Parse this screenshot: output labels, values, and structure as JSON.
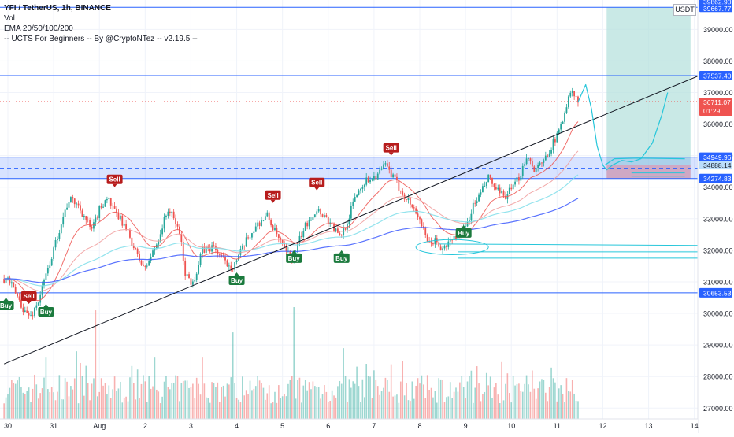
{
  "header": {
    "symbol_line": "YFI / TetherUS, 1h, BINANCE",
    "indicators": [
      "Vol",
      "EMA 20/50/100/200",
      "-- UCTS For Beginners -- By @CryptoNTez -- v2.19.5 --"
    ],
    "currency": "USDT"
  },
  "colors": {
    "up": "#26a69a",
    "down": "#ef5350",
    "level_line": "#2962ff",
    "ema20": "#ef5350",
    "ema50": "#f09a9a",
    "ema100": "#80deea",
    "ema200": "#3d5afe",
    "trendline": "#131722",
    "target_zone": "#b2dfdb",
    "stop_zone": "#ef9a9a",
    "buy_label": "#1b7a3d",
    "sell_label": "#b71c1c",
    "projection": "#26c6da"
  },
  "chart_data": {
    "type": "candlestick",
    "title": "YFI / TetherUS, 1h, BINANCE",
    "y_axis": {
      "min": 26800,
      "max": 39900,
      "ticks": [
        27000,
        28000,
        29000,
        30000,
        31000,
        32000,
        33000,
        34000,
        35000,
        36000,
        37000,
        38000,
        39000
      ],
      "tick_labels": [
        "27000.00",
        "28000.00",
        "29000.00",
        "30000.00",
        "31000.00",
        "32000.00",
        "33000.00",
        "34000.00",
        "35000.00",
        "36000.00",
        "37000.00",
        "38000.00",
        "39000.00"
      ]
    },
    "x_axis": {
      "labels": [
        "30",
        "31",
        "Aug",
        "2",
        "3",
        "4",
        "5",
        "6",
        "7",
        "8",
        "9",
        "10",
        "11",
        "12",
        "13",
        "14"
      ],
      "label_positions_hours": [
        0,
        24,
        48,
        72,
        96,
        120,
        144,
        168,
        192,
        216,
        240,
        264,
        288,
        312,
        336,
        360
      ],
      "range_hours": [
        -2,
        373
      ],
      "last_candle_hour": 299
    },
    "price_keypoints": [
      [
        0,
        31100
      ],
      [
        6,
        30400
      ],
      [
        9,
        30050
      ],
      [
        12,
        29900
      ],
      [
        16,
        30400
      ],
      [
        20,
        31200
      ],
      [
        24,
        32000
      ],
      [
        28,
        32900
      ],
      [
        32,
        33600
      ],
      [
        36,
        33500
      ],
      [
        40,
        33100
      ],
      [
        44,
        32600
      ],
      [
        48,
        33300
      ],
      [
        52,
        33700
      ],
      [
        56,
        33200
      ],
      [
        60,
        32900
      ],
      [
        64,
        32400
      ],
      [
        68,
        31800
      ],
      [
        72,
        31400
      ],
      [
        78,
        32200
      ],
      [
        84,
        33300
      ],
      [
        86,
        33100
      ],
      [
        90,
        32600
      ],
      [
        93,
        31300
      ],
      [
        96,
        31000
      ],
      [
        99,
        31300
      ],
      [
        102,
        32000
      ],
      [
        108,
        32100
      ],
      [
        114,
        31600
      ],
      [
        118,
        31500
      ],
      [
        121,
        31800
      ],
      [
        126,
        32400
      ],
      [
        132,
        32900
      ],
      [
        136,
        33100
      ],
      [
        140,
        32600
      ],
      [
        146,
        31900
      ],
      [
        150,
        31800
      ],
      [
        154,
        32500
      ],
      [
        158,
        33000
      ],
      [
        162,
        33300
      ],
      [
        166,
        33100
      ],
      [
        170,
        32800
      ],
      [
        174,
        32400
      ],
      [
        178,
        32900
      ],
      [
        182,
        33700
      ],
      [
        186,
        34100
      ],
      [
        190,
        34300
      ],
      [
        194,
        34400
      ],
      [
        198,
        34700
      ],
      [
        202,
        34300
      ],
      [
        206,
        33900
      ],
      [
        212,
        33400
      ],
      [
        216,
        33000
      ],
      [
        220,
        32200
      ],
      [
        224,
        32300
      ],
      [
        228,
        32000
      ],
      [
        232,
        32300
      ],
      [
        236,
        32500
      ],
      [
        240,
        32700
      ],
      [
        244,
        33400
      ],
      [
        248,
        33800
      ],
      [
        252,
        34300
      ],
      [
        256,
        33900
      ],
      [
        260,
        33700
      ],
      [
        264,
        33900
      ],
      [
        268,
        34300
      ],
      [
        272,
        35000
      ],
      [
        276,
        34600
      ],
      [
        280,
        34700
      ],
      [
        284,
        35200
      ],
      [
        288,
        35600
      ],
      [
        292,
        36400
      ],
      [
        295,
        37000
      ],
      [
        297,
        36900
      ],
      [
        299,
        36700
      ]
    ],
    "volume_peaks": [
      [
        20,
        28600
      ],
      [
        36,
        28800
      ],
      [
        46,
        30100
      ],
      [
        77,
        28600
      ],
      [
        102,
        28600
      ],
      [
        118,
        29400
      ],
      [
        150,
        30200
      ],
      [
        176,
        28900
      ],
      [
        192,
        29100
      ],
      [
        262,
        28100
      ],
      [
        272,
        28700
      ]
    ],
    "ema_periods": [
      20,
      50,
      100,
      200
    ],
    "horizontal_levels": [
      {
        "value": 39700,
        "label": "39667.77"
      },
      {
        "value": 37537.4,
        "label": "37537.40"
      },
      {
        "value": 34949.96,
        "label": "34949.96"
      },
      {
        "value": 34274.83,
        "label": "34274.83"
      },
      {
        "value": 30653.53,
        "label": "30653.53"
      }
    ],
    "range_box": {
      "top": 34949.96,
      "bottom": 34274.83,
      "mid": 34600
    },
    "entry_label": "34888.14",
    "current_price": {
      "value": 36711.07,
      "label": "36711.07",
      "countdown": "01:29"
    },
    "top_partial_label": "39862.90",
    "trendline": {
      "from": [
        -2,
        28400
      ],
      "to": [
        373,
        37800
      ]
    },
    "position_tool": {
      "start": 314,
      "end": 358,
      "entry": 34700,
      "target": 39700,
      "stop": 34274.83
    },
    "signals": [
      {
        "type": "Buy",
        "hour": -1,
        "price": 30500
      },
      {
        "type": "Sell",
        "hour": 11,
        "price": 30300
      },
      {
        "type": "Buy",
        "hour": 20,
        "price": 30300
      },
      {
        "type": "Sell",
        "hour": 56,
        "price": 34000
      },
      {
        "type": "Buy",
        "hour": 120,
        "price": 31300
      },
      {
        "type": "Sell",
        "hour": 139,
        "price": 33500
      },
      {
        "type": "Buy",
        "hour": 150,
        "price": 32000
      },
      {
        "type": "Sell",
        "hour": 162,
        "price": 33900
      },
      {
        "type": "Buy",
        "hour": 175,
        "price": 32000
      },
      {
        "type": "Sell",
        "hour": 201,
        "price": 35000
      },
      {
        "type": "Buy",
        "hour": 239,
        "price": 32800
      }
    ],
    "projection_path": [
      [
        299,
        36700
      ],
      [
        303,
        37250
      ],
      [
        306,
        36500
      ],
      [
        309,
        35300
      ],
      [
        312,
        34700
      ],
      [
        314,
        34550
      ],
      [
        317,
        34700
      ],
      [
        322,
        34850
      ],
      [
        327,
        34800
      ],
      [
        332,
        34900
      ],
      [
        338,
        35400
      ],
      [
        343,
        36300
      ],
      [
        346,
        37000
      ]
    ],
    "small_path": [
      [
        313,
        34700
      ],
      [
        318,
        34900
      ],
      [
        330,
        34920
      ],
      [
        355,
        34900
      ]
    ],
    "ellipse": {
      "center_hour": 233,
      "center_price": 32100,
      "rx_hours": 19,
      "ry_price": 240
    },
    "support_lines": [
      {
        "from": [
          226,
          32200
        ],
        "to": [
          373,
          32150
        ]
      },
      {
        "from": [
          236,
          31950
        ],
        "to": [
          373,
          31950
        ]
      },
      {
        "from": [
          236,
          31750
        ],
        "to": [
          373,
          31750
        ]
      }
    ]
  }
}
